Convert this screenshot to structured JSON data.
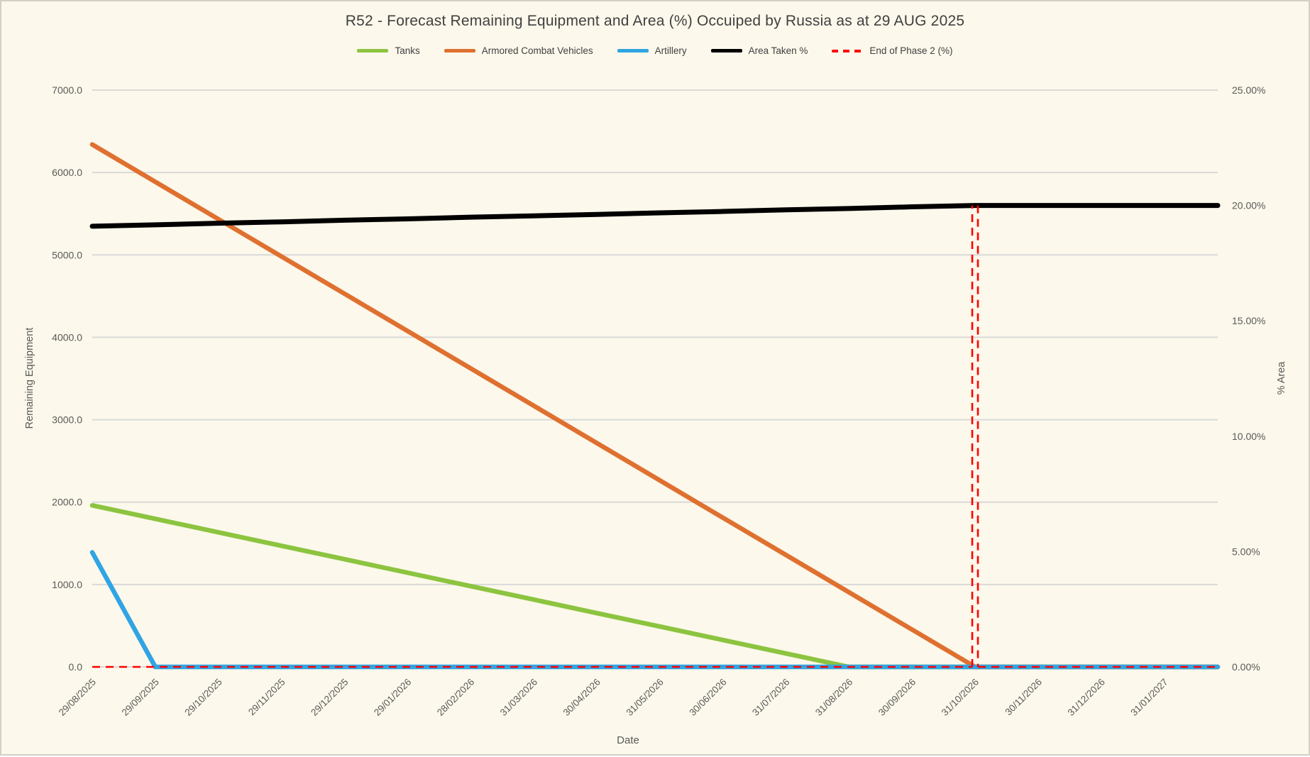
{
  "chart_data": {
    "type": "line",
    "title": "R52 - Forecast Remaining Equipment and Area (%) Occuiped by Russia as at 29 AUG 2025",
    "xlabel": "Date",
    "ylabel_left": "Remaining Equipment",
    "ylabel_right": "% Area",
    "legend_position": "top",
    "grid": "horizontal",
    "colors": {
      "background": "#fcf8eb",
      "gridline": "#d9d9d9",
      "axis_text": "#595959",
      "title_text": "#404040",
      "tanks": "#8cc43f",
      "armored_combat_vehicles": "#df7030",
      "artillery": "#31a4e3",
      "area_taken": "#000000",
      "end_of_phase_2": "#ff0000"
    },
    "categories": [
      "29/08/2025",
      "29/09/2025",
      "29/10/2025",
      "29/11/2025",
      "29/12/2025",
      "29/01/2026",
      "28/02/2026",
      "31/03/2026",
      "30/04/2026",
      "31/05/2026",
      "30/06/2026",
      "31/07/2026",
      "31/08/2026",
      "30/09/2026",
      "31/10/2026",
      "30/11/2026",
      "31/12/2026",
      "31/01/2027"
    ],
    "left_axis": {
      "min": 0,
      "max": 7000,
      "tick_step": 1000,
      "tick_labels": [
        "0.0",
        "1000.0",
        "2000.0",
        "3000.0",
        "4000.0",
        "5000.0",
        "6000.0",
        "7000.0"
      ]
    },
    "right_axis": {
      "min_percent": 0,
      "max_percent": 25,
      "tick_step_percent": 5,
      "tick_labels": [
        "0.00%",
        "5.00%",
        "10.00%",
        "15.00%",
        "20.00%",
        "25.00%"
      ]
    },
    "series": [
      {
        "name": "Tanks",
        "axis": "left",
        "color": "#8cc43f",
        "line_style": "solid",
        "values": [
          1960,
          1797,
          1633,
          1470,
          1307,
          1143,
          980,
          817,
          653,
          490,
          327,
          163,
          0,
          0,
          0,
          0,
          0,
          0
        ]
      },
      {
        "name": "Armored Combat Vehicles",
        "axis": "left",
        "color": "#df7030",
        "line_style": "solid",
        "values": [
          6340,
          5887,
          5434,
          4981,
          4529,
          4076,
          3623,
          3170,
          2717,
          2264,
          1811,
          1359,
          906,
          453,
          0,
          0,
          0,
          0
        ]
      },
      {
        "name": "Artillery",
        "axis": "left",
        "color": "#31a4e3",
        "line_style": "solid",
        "values": [
          1390,
          0,
          0,
          0,
          0,
          0,
          0,
          0,
          0,
          0,
          0,
          0,
          0,
          0,
          0,
          0,
          0,
          0
        ]
      },
      {
        "name": "Area Taken %",
        "axis": "right",
        "unit": "percent",
        "color": "#000000",
        "line_style": "solid",
        "values": [
          19.1,
          19.16,
          19.23,
          19.29,
          19.36,
          19.42,
          19.49,
          19.55,
          19.61,
          19.68,
          19.74,
          19.81,
          19.87,
          19.94,
          20.0,
          20.0,
          20.0,
          20.0
        ]
      },
      {
        "name": "End of Phase 2 (%)",
        "axis": "right",
        "unit": "percent",
        "color": "#ff0000",
        "line_style": "dashed",
        "values": [
          0,
          0,
          0,
          0,
          0,
          0,
          0,
          0,
          0,
          0,
          0,
          0,
          0,
          0,
          0,
          0,
          0,
          0
        ],
        "spike": {
          "category": "31/10/2026",
          "index": 14,
          "peak_percent": 20
        }
      }
    ]
  }
}
